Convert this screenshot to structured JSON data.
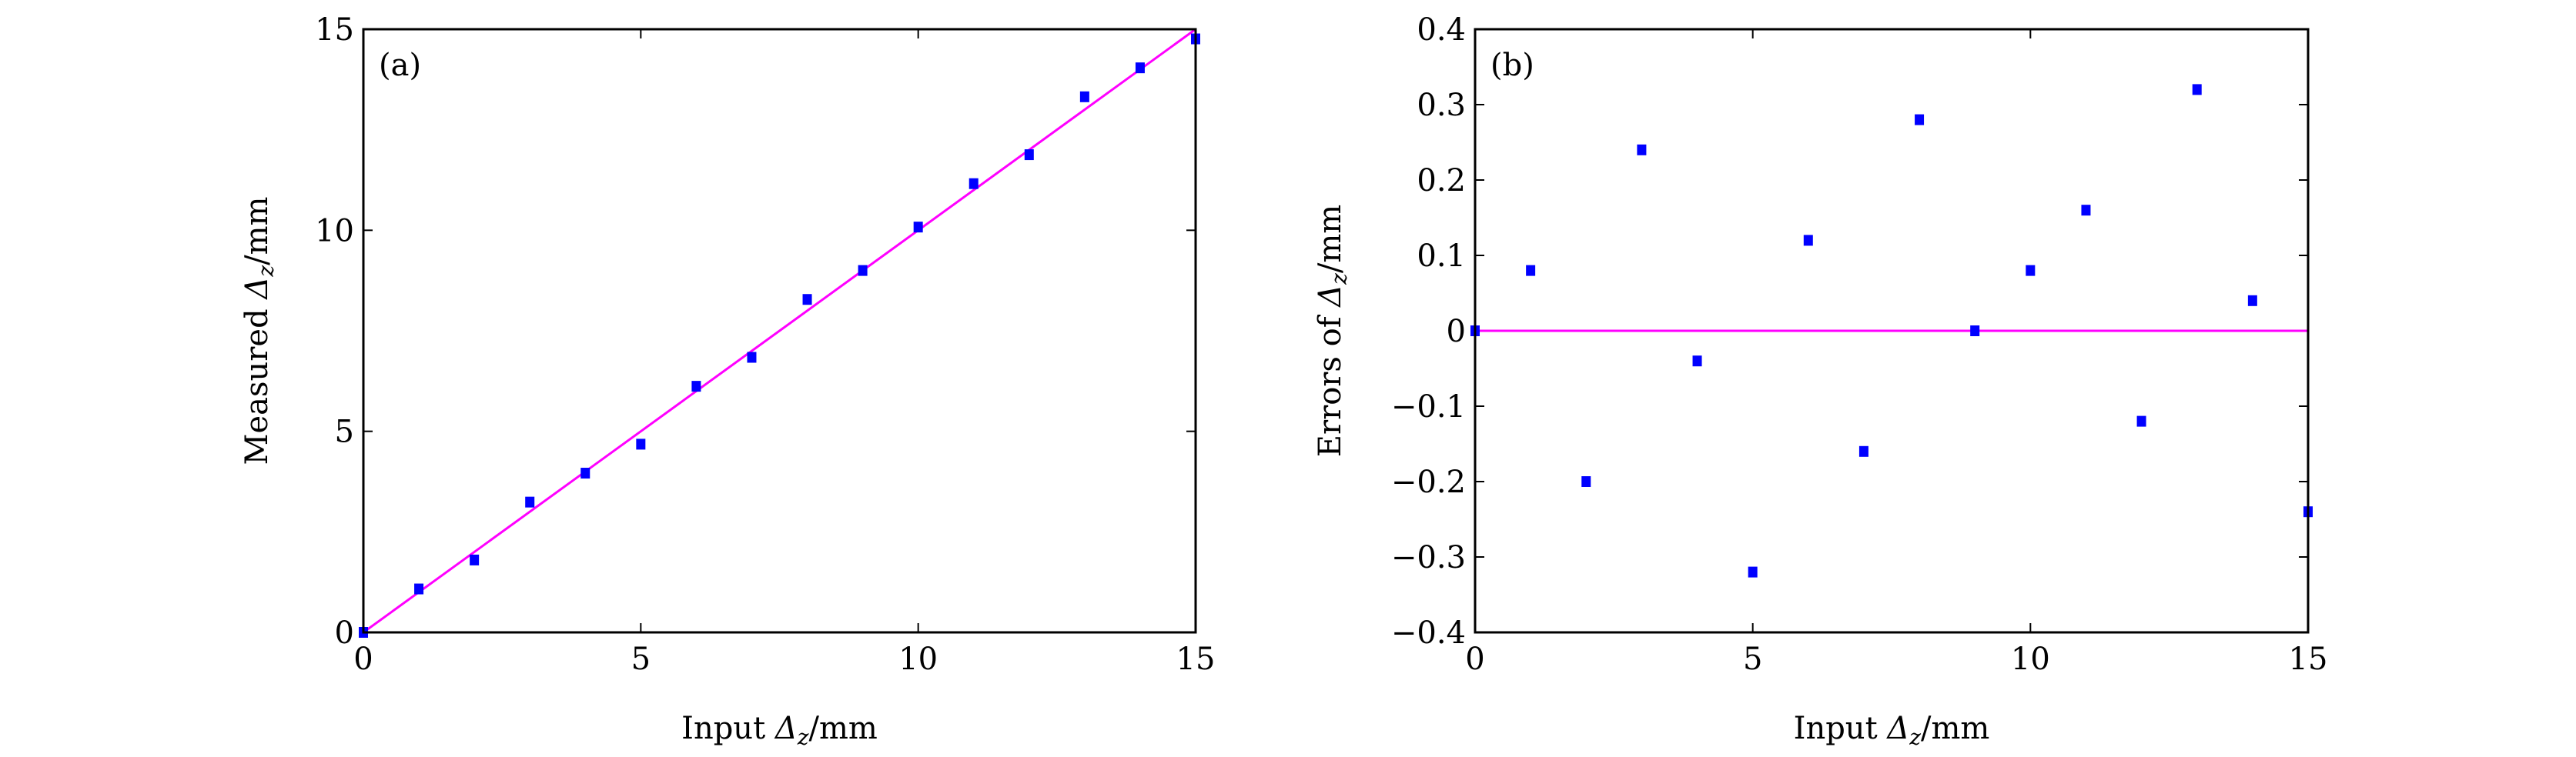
{
  "chart_data": [
    {
      "type": "scatter",
      "panel_label": "(a)",
      "xlabel_prefix": "Input ",
      "ylabel_prefix": "Measured ",
      "label_symbol": "Δ",
      "label_subscript": "z",
      "label_unit": "/mm",
      "xlim": [
        0,
        15
      ],
      "ylim": [
        0,
        15
      ],
      "xticks": [
        0,
        5,
        10,
        15
      ],
      "yticks": [
        0,
        5,
        10,
        15
      ],
      "xtick_labels": [
        "0",
        "5",
        "10",
        "15"
      ],
      "ytick_labels": [
        "0",
        "5",
        "10",
        "15"
      ],
      "series": [
        {
          "name": "measured",
          "kind": "scatter",
          "color": "#0000ff",
          "x": [
            0,
            1,
            2,
            3,
            4,
            5,
            6,
            7,
            8,
            9,
            10,
            11,
            12,
            13,
            14,
            15
          ],
          "y": [
            0,
            1.08,
            1.8,
            3.24,
            3.96,
            4.68,
            6.12,
            6.84,
            8.28,
            9.0,
            10.08,
            11.16,
            11.88,
            13.32,
            14.04,
            14.76
          ]
        },
        {
          "name": "ideal",
          "kind": "line",
          "color": "#ff00ff",
          "x": [
            0,
            15
          ],
          "y": [
            0,
            15
          ]
        }
      ]
    },
    {
      "type": "scatter",
      "panel_label": "(b)",
      "xlabel_prefix": "Input ",
      "ylabel_prefix": "Errors of ",
      "label_symbol": "Δ",
      "label_subscript": "z",
      "label_unit": "/mm",
      "xlim": [
        0,
        15
      ],
      "ylim": [
        -0.4,
        0.4
      ],
      "xticks": [
        0,
        5,
        10,
        15
      ],
      "yticks": [
        -0.4,
        -0.3,
        -0.2,
        -0.1,
        0,
        0.1,
        0.2,
        0.3,
        0.4
      ],
      "xtick_labels": [
        "0",
        "5",
        "10",
        "15"
      ],
      "ytick_labels": [
        "−0.4",
        "−0.3",
        "−0.2",
        "−0.1",
        "0",
        "0.1",
        "0.2",
        "0.3",
        "0.4"
      ],
      "series": [
        {
          "name": "error",
          "kind": "scatter",
          "color": "#0000ff",
          "x": [
            0,
            1,
            2,
            3,
            4,
            5,
            6,
            7,
            8,
            9,
            10,
            11,
            12,
            13,
            14,
            15
          ],
          "y": [
            0,
            0.08,
            -0.2,
            0.24,
            -0.04,
            -0.32,
            0.12,
            -0.16,
            0.28,
            0,
            0.08,
            0.16,
            -0.12,
            0.32,
            0.04,
            -0.24
          ]
        },
        {
          "name": "zero",
          "kind": "line",
          "color": "#ff00ff",
          "x": [
            0,
            15
          ],
          "y": [
            0,
            0
          ]
        }
      ]
    }
  ]
}
